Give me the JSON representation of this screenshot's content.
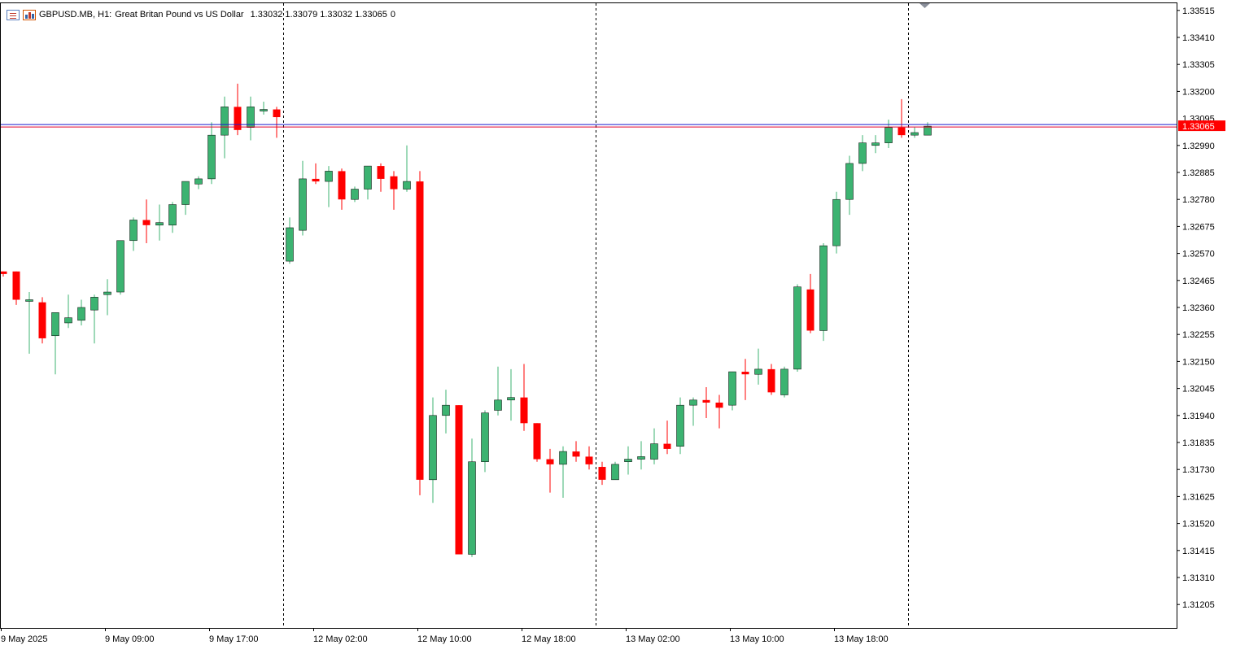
{
  "header": {
    "symbol": "GBPUSD.MB, H1:",
    "description": "Great Britan Pound vs US Dollar",
    "ohlc": "1.33032 1.33079 1.33032 1.33065",
    "volume": "0",
    "icons": [
      "chart-list-icon",
      "chart-bars-icon"
    ]
  },
  "colors": {
    "bull": "#3cb371",
    "bear": "#ff0000",
    "bid_line": "#e0002a",
    "ask_line": "#1a1acc",
    "grid": "#000000",
    "axis_text": "#000000",
    "price_tag_bg": "#ff0000",
    "price_tag_text": "#ffffff"
  },
  "chart_data": {
    "type": "candlestick",
    "symbol": "GBPUSD.MB",
    "timeframe": "H1",
    "current_price": 1.33065,
    "current_price_label": "1.33065",
    "partially_hidden_label": "1.33095",
    "y_tick_labels": [
      "1.33515",
      "1.33410",
      "1.33305",
      "1.33200",
      "1.32990",
      "1.32885",
      "1.32780",
      "1.32675",
      "1.32570",
      "1.32465",
      "1.32360",
      "1.32255",
      "1.32150",
      "1.32045",
      "1.31940",
      "1.31835",
      "1.31730",
      "1.31625",
      "1.31520",
      "1.31415",
      "1.31310",
      "1.31205"
    ],
    "x_tick_labels": [
      "9 May 2025",
      "9 May 09:00",
      "9 May 17:00",
      "12 May 02:00",
      "12 May 10:00",
      "12 May 18:00",
      "13 May 02:00",
      "13 May 10:00",
      "13 May 18:00"
    ],
    "ylim": [
      1.3108,
      1.3355
    ],
    "day_separators_after_candle": [
      21.5,
      45.5,
      69.5
    ],
    "candles": [
      {
        "o": 1.325,
        "h": 1.325,
        "l": 1.3248,
        "c": 1.3249
      },
      {
        "o": 1.325,
        "h": 1.325,
        "l": 1.3237,
        "c": 1.3239
      },
      {
        "o": 1.3239,
        "h": 1.3242,
        "l": 1.3218,
        "c": 1.3239
      },
      {
        "o": 1.3238,
        "h": 1.324,
        "l": 1.3222,
        "c": 1.3224
      },
      {
        "o": 1.3225,
        "h": 1.3234,
        "l": 1.321,
        "c": 1.3234
      },
      {
        "o": 1.323,
        "h": 1.3241,
        "l": 1.3228,
        "c": 1.3232
      },
      {
        "o": 1.3231,
        "h": 1.3239,
        "l": 1.3229,
        "c": 1.3236
      },
      {
        "o": 1.3235,
        "h": 1.3241,
        "l": 1.3222,
        "c": 1.324
      },
      {
        "o": 1.3241,
        "h": 1.3247,
        "l": 1.3233,
        "c": 1.3242
      },
      {
        "o": 1.3242,
        "h": 1.3262,
        "l": 1.3241,
        "c": 1.3262
      },
      {
        "o": 1.3262,
        "h": 1.3271,
        "l": 1.3258,
        "c": 1.327
      },
      {
        "o": 1.327,
        "h": 1.3278,
        "l": 1.3261,
        "c": 1.3268
      },
      {
        "o": 1.3268,
        "h": 1.3276,
        "l": 1.3262,
        "c": 1.3269
      },
      {
        "o": 1.3268,
        "h": 1.3277,
        "l": 1.3265,
        "c": 1.3276
      },
      {
        "o": 1.3276,
        "h": 1.3285,
        "l": 1.3272,
        "c": 1.3285
      },
      {
        "o": 1.3284,
        "h": 1.3287,
        "l": 1.3282,
        "c": 1.3286
      },
      {
        "o": 1.3286,
        "h": 1.3308,
        "l": 1.3284,
        "c": 1.3303
      },
      {
        "o": 1.3303,
        "h": 1.3318,
        "l": 1.3294,
        "c": 1.3314
      },
      {
        "o": 1.3314,
        "h": 1.3323,
        "l": 1.3303,
        "c": 1.3305
      },
      {
        "o": 1.3306,
        "h": 1.3318,
        "l": 1.3301,
        "c": 1.3314
      },
      {
        "o": 1.3313,
        "h": 1.3316,
        "l": 1.3311,
        "c": 1.3313
      },
      {
        "o": 1.3313,
        "h": 1.3314,
        "l": 1.3302,
        "c": 1.331
      },
      {
        "o": 1.3254,
        "h": 1.3271,
        "l": 1.3253,
        "c": 1.3267
      },
      {
        "o": 1.3266,
        "h": 1.3293,
        "l": 1.3264,
        "c": 1.3286
      },
      {
        "o": 1.3286,
        "h": 1.3292,
        "l": 1.3284,
        "c": 1.3285
      },
      {
        "o": 1.3285,
        "h": 1.3291,
        "l": 1.3275,
        "c": 1.3289
      },
      {
        "o": 1.3289,
        "h": 1.329,
        "l": 1.3274,
        "c": 1.3278
      },
      {
        "o": 1.3278,
        "h": 1.3283,
        "l": 1.3277,
        "c": 1.3282
      },
      {
        "o": 1.3282,
        "h": 1.3291,
        "l": 1.3278,
        "c": 1.3291
      },
      {
        "o": 1.3291,
        "h": 1.3292,
        "l": 1.3281,
        "c": 1.3286
      },
      {
        "o": 1.3287,
        "h": 1.3289,
        "l": 1.3274,
        "c": 1.3282
      },
      {
        "o": 1.3282,
        "h": 1.3299,
        "l": 1.3281,
        "c": 1.3285
      },
      {
        "o": 1.3285,
        "h": 1.3289,
        "l": 1.3163,
        "c": 1.3169
      },
      {
        "o": 1.3169,
        "h": 1.3201,
        "l": 1.316,
        "c": 1.3194
      },
      {
        "o": 1.3194,
        "h": 1.3204,
        "l": 1.3187,
        "c": 1.3198
      },
      {
        "o": 1.3198,
        "h": 1.3198,
        "l": 1.314,
        "c": 1.314
      },
      {
        "o": 1.314,
        "h": 1.3185,
        "l": 1.3139,
        "c": 1.3176
      },
      {
        "o": 1.3176,
        "h": 1.3196,
        "l": 1.3172,
        "c": 1.3195
      },
      {
        "o": 1.3196,
        "h": 1.3213,
        "l": 1.3194,
        "c": 1.32
      },
      {
        "o": 1.32,
        "h": 1.3212,
        "l": 1.3192,
        "c": 1.3201
      },
      {
        "o": 1.3201,
        "h": 1.3214,
        "l": 1.3188,
        "c": 1.3191
      },
      {
        "o": 1.3191,
        "h": 1.3191,
        "l": 1.3176,
        "c": 1.3177
      },
      {
        "o": 1.3177,
        "h": 1.3181,
        "l": 1.3164,
        "c": 1.3175
      },
      {
        "o": 1.3175,
        "h": 1.3182,
        "l": 1.3162,
        "c": 1.318
      },
      {
        "o": 1.318,
        "h": 1.3184,
        "l": 1.3176,
        "c": 1.3178
      },
      {
        "o": 1.3178,
        "h": 1.3182,
        "l": 1.3173,
        "c": 1.3175
      },
      {
        "o": 1.3174,
        "h": 1.3176,
        "l": 1.3167,
        "c": 1.3169
      },
      {
        "o": 1.3169,
        "h": 1.3176,
        "l": 1.3169,
        "c": 1.3175
      },
      {
        "o": 1.3176,
        "h": 1.3182,
        "l": 1.3171,
        "c": 1.3177
      },
      {
        "o": 1.3177,
        "h": 1.3184,
        "l": 1.3173,
        "c": 1.3178
      },
      {
        "o": 1.3177,
        "h": 1.3189,
        "l": 1.3175,
        "c": 1.3183
      },
      {
        "o": 1.3183,
        "h": 1.3192,
        "l": 1.3179,
        "c": 1.3181
      },
      {
        "o": 1.3182,
        "h": 1.3201,
        "l": 1.3179,
        "c": 1.3198
      },
      {
        "o": 1.3198,
        "h": 1.3201,
        "l": 1.319,
        "c": 1.32
      },
      {
        "o": 1.32,
        "h": 1.3205,
        "l": 1.3193,
        "c": 1.3199
      },
      {
        "o": 1.3199,
        "h": 1.3202,
        "l": 1.3189,
        "c": 1.3197
      },
      {
        "o": 1.3198,
        "h": 1.3211,
        "l": 1.3196,
        "c": 1.3211
      },
      {
        "o": 1.3211,
        "h": 1.3216,
        "l": 1.32,
        "c": 1.321
      },
      {
        "o": 1.321,
        "h": 1.322,
        "l": 1.3206,
        "c": 1.3212
      },
      {
        "o": 1.3212,
        "h": 1.3214,
        "l": 1.3202,
        "c": 1.3203
      },
      {
        "o": 1.3202,
        "h": 1.3213,
        "l": 1.3201,
        "c": 1.3212
      },
      {
        "o": 1.3212,
        "h": 1.3245,
        "l": 1.3211,
        "c": 1.3244
      },
      {
        "o": 1.3243,
        "h": 1.3249,
        "l": 1.3226,
        "c": 1.3227
      },
      {
        "o": 1.3227,
        "h": 1.3261,
        "l": 1.3223,
        "c": 1.326
      },
      {
        "o": 1.326,
        "h": 1.3281,
        "l": 1.3257,
        "c": 1.3278
      },
      {
        "o": 1.3278,
        "h": 1.3295,
        "l": 1.3272,
        "c": 1.3292
      },
      {
        "o": 1.3292,
        "h": 1.3303,
        "l": 1.3289,
        "c": 1.33
      },
      {
        "o": 1.3299,
        "h": 1.3303,
        "l": 1.3296,
        "c": 1.33
      },
      {
        "o": 1.33,
        "h": 1.3309,
        "l": 1.3298,
        "c": 1.3306
      },
      {
        "o": 1.3306,
        "h": 1.3317,
        "l": 1.3302,
        "c": 1.3303
      },
      {
        "o": 1.3303,
        "h": 1.3306,
        "l": 1.3302,
        "c": 1.3304
      },
      {
        "o": 1.3303,
        "h": 1.3308,
        "l": 1.3303,
        "c": 1.33065
      }
    ]
  }
}
